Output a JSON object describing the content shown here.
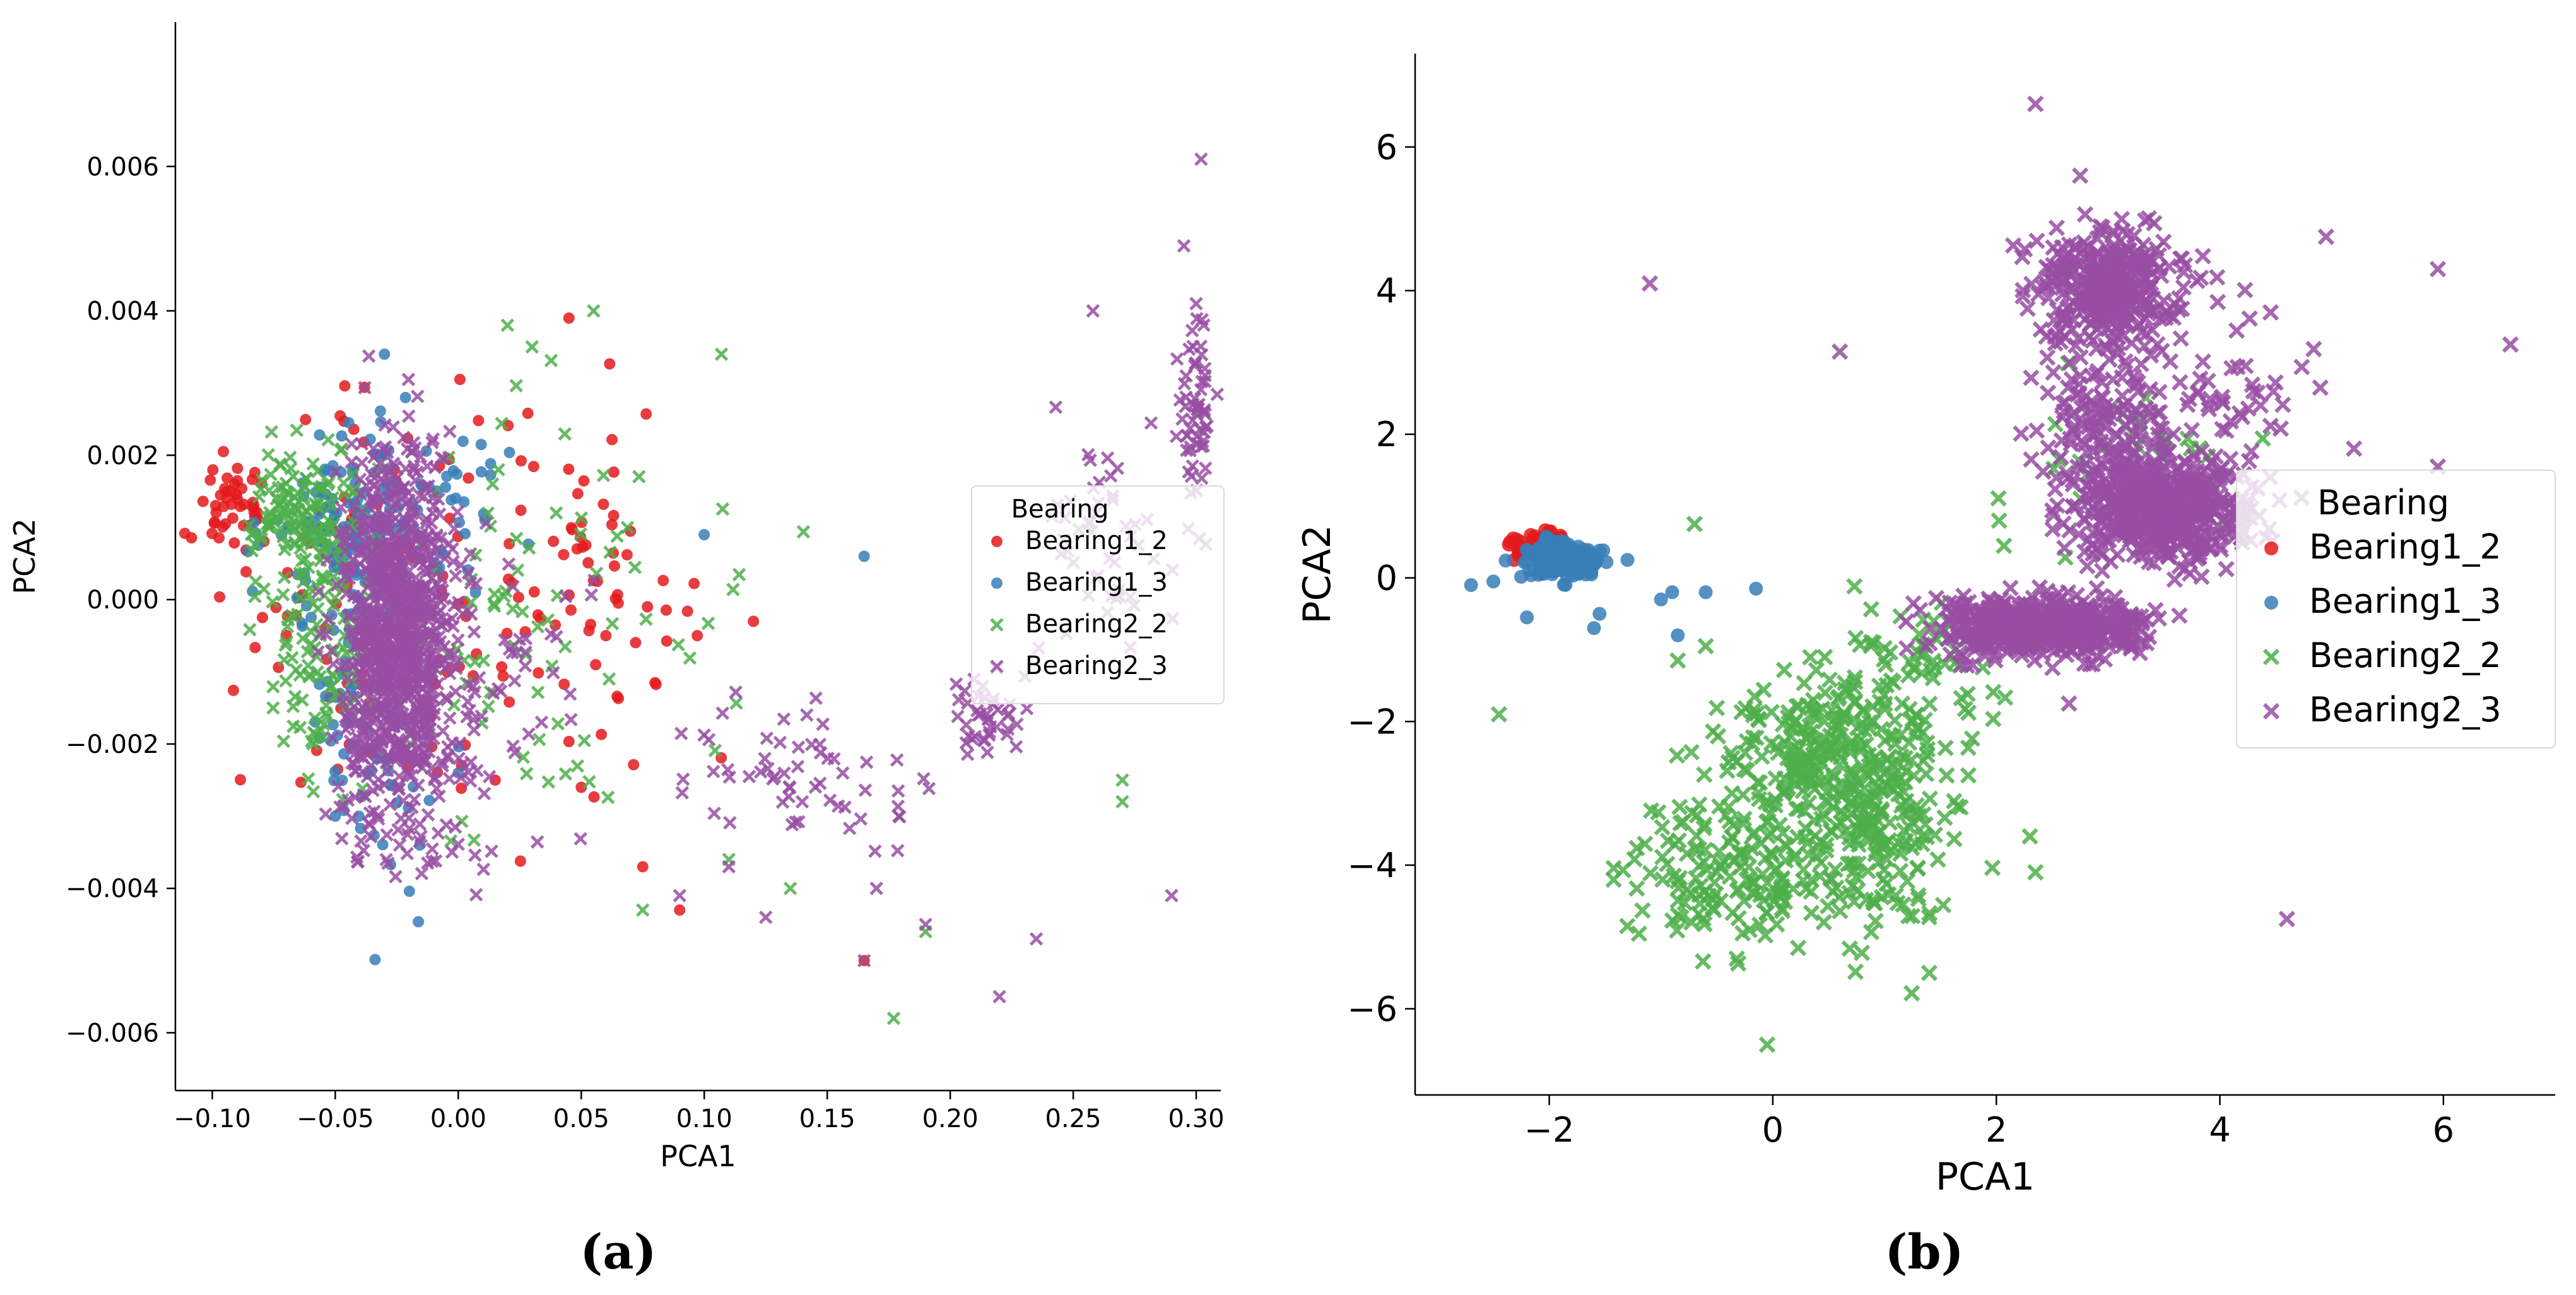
{
  "chart_data": [
    {
      "panel": "(a)",
      "type": "scatter",
      "title": "",
      "xlabel": "PCA1",
      "ylabel": "PCA2",
      "xlim": [
        -0.115,
        0.31
      ],
      "ylim": [
        -0.0068,
        0.008
      ],
      "xticks": [
        -0.1,
        -0.05,
        0.0,
        0.05,
        0.1,
        0.15,
        0.2,
        0.25,
        0.3
      ],
      "xtick_labels": [
        "−0.10",
        "−0.05",
        "0.00",
        "0.05",
        "0.10",
        "0.15",
        "0.20",
        "0.25",
        "0.30"
      ],
      "yticks": [
        -0.006,
        -0.004,
        -0.002,
        0.0,
        0.002,
        0.004,
        0.006
      ],
      "ytick_labels": [
        "−0.006",
        "−0.004",
        "−0.002",
        "0.000",
        "0.002",
        "0.004",
        "0.006"
      ],
      "grid": false,
      "legend": {
        "title": "Bearing",
        "placement": "right"
      },
      "series": [
        {
          "name": "Bearing1_2",
          "marker": "dot",
          "color": "#e41a1c",
          "clusters": [
            {
              "cx": -0.09,
              "cy": 0.0012,
              "sx": 0.008,
              "sy": 0.00035,
              "n": 45
            },
            {
              "cx": -0.02,
              "cy": -0.0002,
              "sx": 0.035,
              "sy": 0.0014,
              "n": 120
            },
            {
              "cx": 0.06,
              "cy": 0.0001,
              "sx": 0.025,
              "sy": 0.0012,
              "n": 60
            }
          ],
          "points": [
            [
              0.165,
              -0.005
            ],
            [
              0.09,
              -0.0043
            ],
            [
              0.12,
              -0.0003
            ],
            [
              0.05,
              -0.0026
            ],
            [
              0.075,
              -0.0037
            ],
            [
              0.06,
              -0.0005
            ],
            [
              0.015,
              -0.0025
            ],
            [
              0.045,
              0.0039
            ]
          ]
        },
        {
          "name": "Bearing1_3",
          "marker": "dot",
          "color": "#377eb8",
          "clusters": [
            {
              "cx": -0.045,
              "cy": 0.001,
              "sx": 0.018,
              "sy": 0.0006,
              "n": 110
            },
            {
              "cx": -0.035,
              "cy": -0.001,
              "sx": 0.012,
              "sy": 0.0013,
              "n": 140
            },
            {
              "cx": -0.01,
              "cy": 0.0015,
              "sx": 0.02,
              "sy": 0.0006,
              "n": 40
            }
          ],
          "points": [
            [
              -0.03,
              0.0034
            ],
            [
              0.1,
              0.0009
            ],
            [
              0.165,
              0.0006
            ],
            [
              0.0,
              -0.0024
            ],
            [
              -0.05,
              -0.003
            ]
          ]
        },
        {
          "name": "Bearing2_2",
          "marker": "x",
          "color": "#4daf4a",
          "clusters": [
            {
              "cx": -0.062,
              "cy": 0.0011,
              "sx": 0.011,
              "sy": 0.00045,
              "n": 130
            },
            {
              "cx": -0.055,
              "cy": -0.0008,
              "sx": 0.012,
              "sy": 0.001,
              "n": 110
            },
            {
              "cx": 0.03,
              "cy": -0.0002,
              "sx": 0.04,
              "sy": 0.0014,
              "n": 90
            }
          ],
          "points": [
            [
              0.177,
              -0.0058
            ],
            [
              0.055,
              0.004
            ],
            [
              0.02,
              0.0038
            ],
            [
              0.107,
              0.0034
            ],
            [
              0.11,
              -0.0036
            ],
            [
              0.135,
              -0.004
            ],
            [
              0.19,
              -0.0046
            ],
            [
              0.075,
              -0.0043
            ],
            [
              0.27,
              -0.0028
            ],
            [
              0.27,
              -0.0025
            ],
            [
              0.03,
              0.0035
            ]
          ]
        },
        {
          "name": "Bearing2_3",
          "marker": "x",
          "color": "#984ea3",
          "clusters": [
            {
              "cx": -0.025,
              "cy": -0.0005,
              "sx": 0.011,
              "sy": 0.0013,
              "n": 900
            },
            {
              "cx": 0.0,
              "cy": -0.001,
              "sx": 0.02,
              "sy": 0.0012,
              "n": 120
            },
            {
              "cx": 0.14,
              "cy": -0.0025,
              "sx": 0.025,
              "sy": 0.0006,
              "n": 60
            },
            {
              "cx": 0.215,
              "cy": -0.0017,
              "sx": 0.008,
              "sy": 0.0003,
              "n": 40
            },
            {
              "cx": 0.265,
              "cy": 0.001,
              "sx": 0.015,
              "sy": 0.0008,
              "n": 50
            },
            {
              "cx": 0.3,
              "cy": 0.0025,
              "sx": 0.004,
              "sy": 0.0008,
              "n": 60
            }
          ],
          "points": [
            [
              0.302,
              0.0061
            ],
            [
              0.295,
              0.0049
            ],
            [
              0.3,
              0.0041
            ],
            [
              0.258,
              0.004
            ],
            [
              0.29,
              -0.0041
            ],
            [
              0.22,
              -0.0055
            ],
            [
              0.235,
              -0.0047
            ],
            [
              0.165,
              -0.005
            ],
            [
              0.125,
              -0.0044
            ],
            [
              0.17,
              -0.004
            ],
            [
              0.09,
              -0.0041
            ],
            [
              0.11,
              -0.0037
            ],
            [
              0.19,
              -0.0045
            ]
          ]
        }
      ]
    },
    {
      "panel": "(b)",
      "type": "scatter",
      "title": "",
      "xlabel": "PCA1",
      "ylabel": "PCA2",
      "xlim": [
        -3.2,
        7.0
      ],
      "ylim": [
        -7.2,
        7.3
      ],
      "xticks": [
        -2,
        0,
        2,
        4,
        6
      ],
      "xtick_labels": [
        "−2",
        "0",
        "2",
        "4",
        "6"
      ],
      "yticks": [
        -6,
        -4,
        -2,
        0,
        2,
        4,
        6
      ],
      "ytick_labels": [
        "−6",
        "−4",
        "−2",
        "0",
        "2",
        "4",
        "6"
      ],
      "grid": false,
      "legend": {
        "title": "Bearing",
        "placement": "right"
      },
      "series": [
        {
          "name": "Bearing1_2",
          "marker": "dot",
          "color": "#e41a1c",
          "clusters": [
            {
              "cx": -2.1,
              "cy": 0.45,
              "sx": 0.13,
              "sy": 0.1,
              "n": 50
            }
          ],
          "points": []
        },
        {
          "name": "Bearing1_3",
          "marker": "dot",
          "color": "#377eb8",
          "clusters": [
            {
              "cx": -1.9,
              "cy": 0.25,
              "sx": 0.18,
              "sy": 0.15,
              "n": 140
            }
          ],
          "points": [
            [
              -2.7,
              -0.1
            ],
            [
              -2.5,
              -0.05
            ],
            [
              -2.2,
              -0.55
            ],
            [
              -1.6,
              -0.7
            ],
            [
              -1.3,
              0.25
            ],
            [
              -1.0,
              -0.3
            ],
            [
              -0.9,
              -0.2
            ],
            [
              -0.6,
              -0.2
            ],
            [
              -0.15,
              -0.15
            ],
            [
              -0.85,
              -0.8
            ],
            [
              -1.55,
              -0.5
            ]
          ]
        },
        {
          "name": "Bearing2_2",
          "marker": "x",
          "color": "#4daf4a",
          "clusters": [
            {
              "cx": 0.5,
              "cy": -2.5,
              "sx": 0.45,
              "sy": 0.5,
              "n": 260
            },
            {
              "cx": -0.3,
              "cy": -4.0,
              "sx": 0.5,
              "sy": 0.55,
              "n": 170
            },
            {
              "cx": 0.9,
              "cy": -3.8,
              "sx": 0.35,
              "sy": 0.6,
              "n": 130
            },
            {
              "cx": 1.3,
              "cy": -1.3,
              "sx": 0.35,
              "sy": 0.5,
              "n": 70
            },
            {
              "cx": 3.2,
              "cy": 1.5,
              "sx": 0.5,
              "sy": 0.6,
              "n": 40
            }
          ],
          "points": [
            [
              -0.05,
              -6.5
            ],
            [
              -0.7,
              0.75
            ],
            [
              -0.85,
              -1.15
            ],
            [
              -0.6,
              -0.95
            ],
            [
              1.75,
              -2.75
            ],
            [
              2.3,
              -3.6
            ],
            [
              2.35,
              -4.1
            ],
            [
              1.4,
              -5.5
            ],
            [
              -2.45,
              -1.9
            ]
          ]
        },
        {
          "name": "Bearing2_3",
          "marker": "x",
          "color": "#984ea3",
          "clusters": [
            {
              "cx": 2.4,
              "cy": -0.7,
              "sx": 0.45,
              "sy": 0.2,
              "n": 600
            },
            {
              "cx": 3.5,
              "cy": 0.9,
              "sx": 0.35,
              "sy": 0.35,
              "n": 500
            },
            {
              "cx": 3.0,
              "cy": 4.1,
              "sx": 0.3,
              "sy": 0.4,
              "n": 350
            },
            {
              "cx": 3.0,
              "cy": 2.0,
              "sx": 0.3,
              "sy": 0.8,
              "n": 200
            },
            {
              "cx": 4.0,
              "cy": 2.2,
              "sx": 0.4,
              "sy": 0.9,
              "n": 70
            }
          ],
          "points": [
            [
              2.35,
              6.6
            ],
            [
              -1.1,
              4.1
            ],
            [
              0.6,
              3.15
            ],
            [
              5.95,
              4.3
            ],
            [
              6.6,
              3.25
            ],
            [
              4.95,
              4.75
            ],
            [
              5.95,
              1.55
            ],
            [
              4.6,
              -4.75
            ],
            [
              2.65,
              -1.75
            ],
            [
              2.75,
              5.6
            ],
            [
              5.2,
              1.8
            ],
            [
              4.45,
              1.4
            ],
            [
              4.3,
              2.6
            ]
          ]
        }
      ]
    }
  ],
  "captions": {
    "a": "(a)",
    "b": "(b)"
  }
}
